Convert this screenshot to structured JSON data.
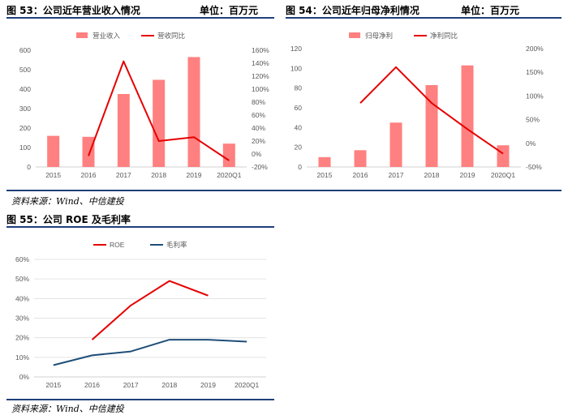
{
  "fig53": {
    "title": "图 53：公司近年营业收入情况",
    "unit": "单位：百万元"
  },
  "fig54": {
    "title": "图 54：公司近年归母净利情况",
    "unit": "单位：百万元"
  },
  "fig55": {
    "title": "图 55：公司 ROE 及毛利率"
  },
  "source": "资料来源：Wind、中信建投",
  "chart_data": [
    {
      "id": "revenue",
      "type": "bar",
      "categories": [
        "2015",
        "2016",
        "2017",
        "2018",
        "2019",
        "2020Q1"
      ],
      "series": [
        {
          "name": "营业收入",
          "kind": "bar",
          "axis": "left",
          "color": "#ff8080",
          "values": [
            160,
            155,
            375,
            448,
            565,
            120
          ]
        },
        {
          "name": "营收同比",
          "kind": "line",
          "axis": "right",
          "color": "#e60000",
          "values": [
            null,
            -3,
            143,
            20,
            26,
            -10
          ]
        }
      ],
      "yleft": {
        "min": 0,
        "max": 600,
        "step": 100,
        "ticks": [
          "0",
          "100",
          "200",
          "300",
          "400",
          "500",
          "600"
        ]
      },
      "yright": {
        "min": -20,
        "max": 160,
        "step": 20,
        "ticks": [
          "-20%",
          "0%",
          "20%",
          "40%",
          "60%",
          "80%",
          "100%",
          "120%",
          "140%",
          "160%"
        ]
      },
      "legend": "top-center",
      "grid": false
    },
    {
      "id": "netprofit",
      "type": "bar",
      "categories": [
        "2015",
        "2016",
        "2017",
        "2018",
        "2019",
        "2020Q1"
      ],
      "series": [
        {
          "name": "归母净利",
          "kind": "bar",
          "axis": "left",
          "color": "#ff8080",
          "values": [
            10,
            17,
            45,
            83,
            103,
            22
          ]
        },
        {
          "name": "净利同比",
          "kind": "line",
          "axis": "right",
          "color": "#e60000",
          "values": [
            null,
            85,
            161,
            85,
            30,
            -22
          ]
        }
      ],
      "yleft": {
        "min": 0,
        "max": 120,
        "step": 20,
        "ticks": [
          "0",
          "20",
          "40",
          "60",
          "80",
          "100",
          "120"
        ]
      },
      "yright": {
        "min": -50,
        "max": 200,
        "step": 50,
        "ticks": [
          "-50%",
          "0%",
          "50%",
          "100%",
          "150%",
          "200%"
        ]
      },
      "legend": "top-center",
      "grid": false
    },
    {
      "id": "roe",
      "type": "line",
      "categories": [
        "2015",
        "2016",
        "2017",
        "2018",
        "2019",
        "2020Q1"
      ],
      "series": [
        {
          "name": "ROE",
          "kind": "line",
          "axis": "left",
          "color": "#e60000",
          "values": [
            null,
            19,
            36.5,
            49,
            41.5,
            null
          ]
        },
        {
          "name": "毛利率",
          "kind": "line",
          "axis": "left",
          "color": "#1f4e79",
          "values": [
            6,
            11,
            13,
            19,
            19,
            18
          ]
        }
      ],
      "yleft": {
        "min": 0,
        "max": 60,
        "step": 10,
        "ticks": [
          "0%",
          "10%",
          "20%",
          "30%",
          "40%",
          "50%",
          "60%"
        ]
      },
      "legend": "top-center",
      "grid": true
    }
  ]
}
